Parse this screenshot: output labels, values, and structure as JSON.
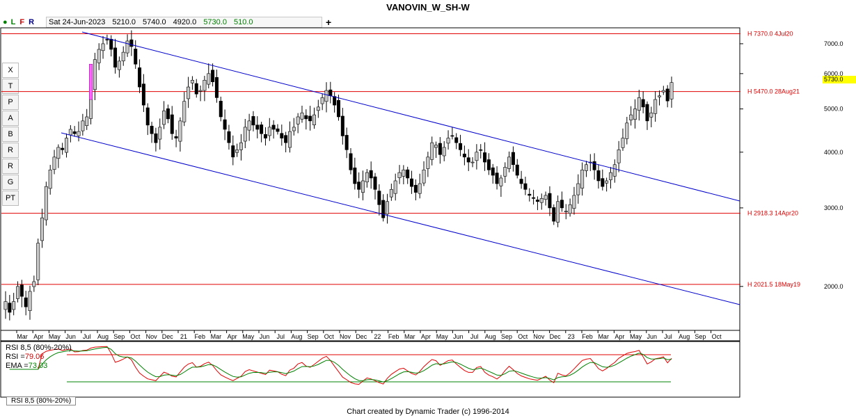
{
  "title": "VANOVIN_W_SH-W",
  "toolbar": {
    "status_dot": "●",
    "btn_l": "L",
    "btn_f": "F",
    "btn_r": "R",
    "add": "+",
    "close_x": "X"
  },
  "info": {
    "date": "Sat 24-Jun-2023",
    "open": "5210.0",
    "high": "5740.0",
    "low": "4920.0",
    "close": "5730.0",
    "change": "510.0"
  },
  "tools": [
    "T",
    "P",
    "A",
    "B",
    "R",
    "R",
    "G",
    "PT"
  ],
  "colors": {
    "bull": "#c8c8c8",
    "bear": "#000000",
    "hline": "#e00000",
    "channel": "#0000cc",
    "rsi": "#e00000",
    "ema": "#008000",
    "current": "#ffff00"
  },
  "chart_data": {
    "type": "candlestick",
    "y_scale": "log",
    "ylim": [
      1600,
      7600
    ],
    "yticks": [
      "7000.0",
      "6000.0",
      "5000.0",
      "4000.0",
      "3000.0",
      "2000.0"
    ],
    "xticks": [
      "Mar",
      "Apr",
      "May",
      "Jun",
      "Jul",
      "Aug",
      "Sep",
      "Oct",
      "Nov",
      "Dec",
      "21",
      "Feb",
      "Mar",
      "Apr",
      "May",
      "Jun",
      "Jul",
      "Aug",
      "Sep",
      "Oct",
      "Nov",
      "Dec",
      "22",
      "Feb",
      "Mar",
      "Apr",
      "May",
      "Jun",
      "Jul",
      "Aug",
      "Sep",
      "Oct",
      "Nov",
      "Dec",
      "23",
      "Feb",
      "Mar",
      "Apr",
      "May",
      "Jun",
      "Jul",
      "Aug",
      "Sep",
      "Oct"
    ],
    "closes": [
      1850,
      1750,
      1850,
      2000,
      1900,
      1800,
      1950,
      2050,
      2500,
      2850,
      3350,
      3650,
      3900,
      4100,
      4050,
      4300,
      4500,
      4400,
      4450,
      4700,
      4800,
      5600,
      6450,
      6800,
      7000,
      7150,
      6800,
      6200,
      6400,
      6700,
      7100,
      6900,
      6300,
      5600,
      5100,
      4600,
      4400,
      4200,
      4550,
      4950,
      4750,
      4400,
      4300,
      4700,
      5200,
      5600,
      5800,
      5400,
      5500,
      5800,
      6000,
      5750,
      5300,
      4800,
      4500,
      4200,
      3900,
      4050,
      4200,
      4550,
      4700,
      4600,
      4500,
      4400,
      4300,
      4550,
      4500,
      4450,
      4300,
      4200,
      4450,
      4550,
      4800,
      4900,
      4750,
      4700,
      4850,
      5050,
      5300,
      5500,
      5350,
      5100,
      4800,
      4350,
      4050,
      3650,
      3400,
      3300,
      3450,
      3600,
      3500,
      3300,
      3050,
      2850,
      3100,
      3300,
      3450,
      3600,
      3650,
      3500,
      3350,
      3250,
      3400,
      3650,
      3900,
      4200,
      4150,
      3950,
      4100,
      4300,
      4350,
      4200,
      4050,
      3900,
      3800,
      3800,
      4000,
      4050,
      3800,
      3650,
      3550,
      3400,
      3500,
      3700,
      3900,
      3750,
      3550,
      3400,
      3300,
      3200,
      3150,
      3100,
      3150,
      3200,
      3000,
      2800,
      3100,
      3000,
      2950,
      3050,
      3200,
      3400,
      3650,
      3750,
      3800,
      3650,
      3450,
      3350,
      3450,
      3600,
      3750,
      4050,
      4300,
      4650,
      4850,
      5000,
      5300,
      5050,
      4700,
      4900,
      5250,
      5350,
      5500,
      5210,
      5730
    ],
    "hlines": [
      {
        "value": 7370,
        "label": "H 7370.0 4Jul20"
      },
      {
        "value": 5470,
        "label": "H 5470.0 28Aug21"
      },
      {
        "value": 2918.3,
        "label": "H 2918.3 14Apr20"
      },
      {
        "value": 2021.5,
        "label": "H 2021.5 18May19"
      }
    ],
    "current_price": "5730.0",
    "rsi": {
      "label": "RSI 8,5 (80%-20%)",
      "rsi_text": "RSI =",
      "rsi_value": "79.06",
      "ema_text": "EMA =",
      "ema_value": "73.03",
      "tab": "RSI 8,5 (80%-20%)"
    }
  },
  "footer": "Chart created by Dynamic Trader  (c) 1996-2014"
}
